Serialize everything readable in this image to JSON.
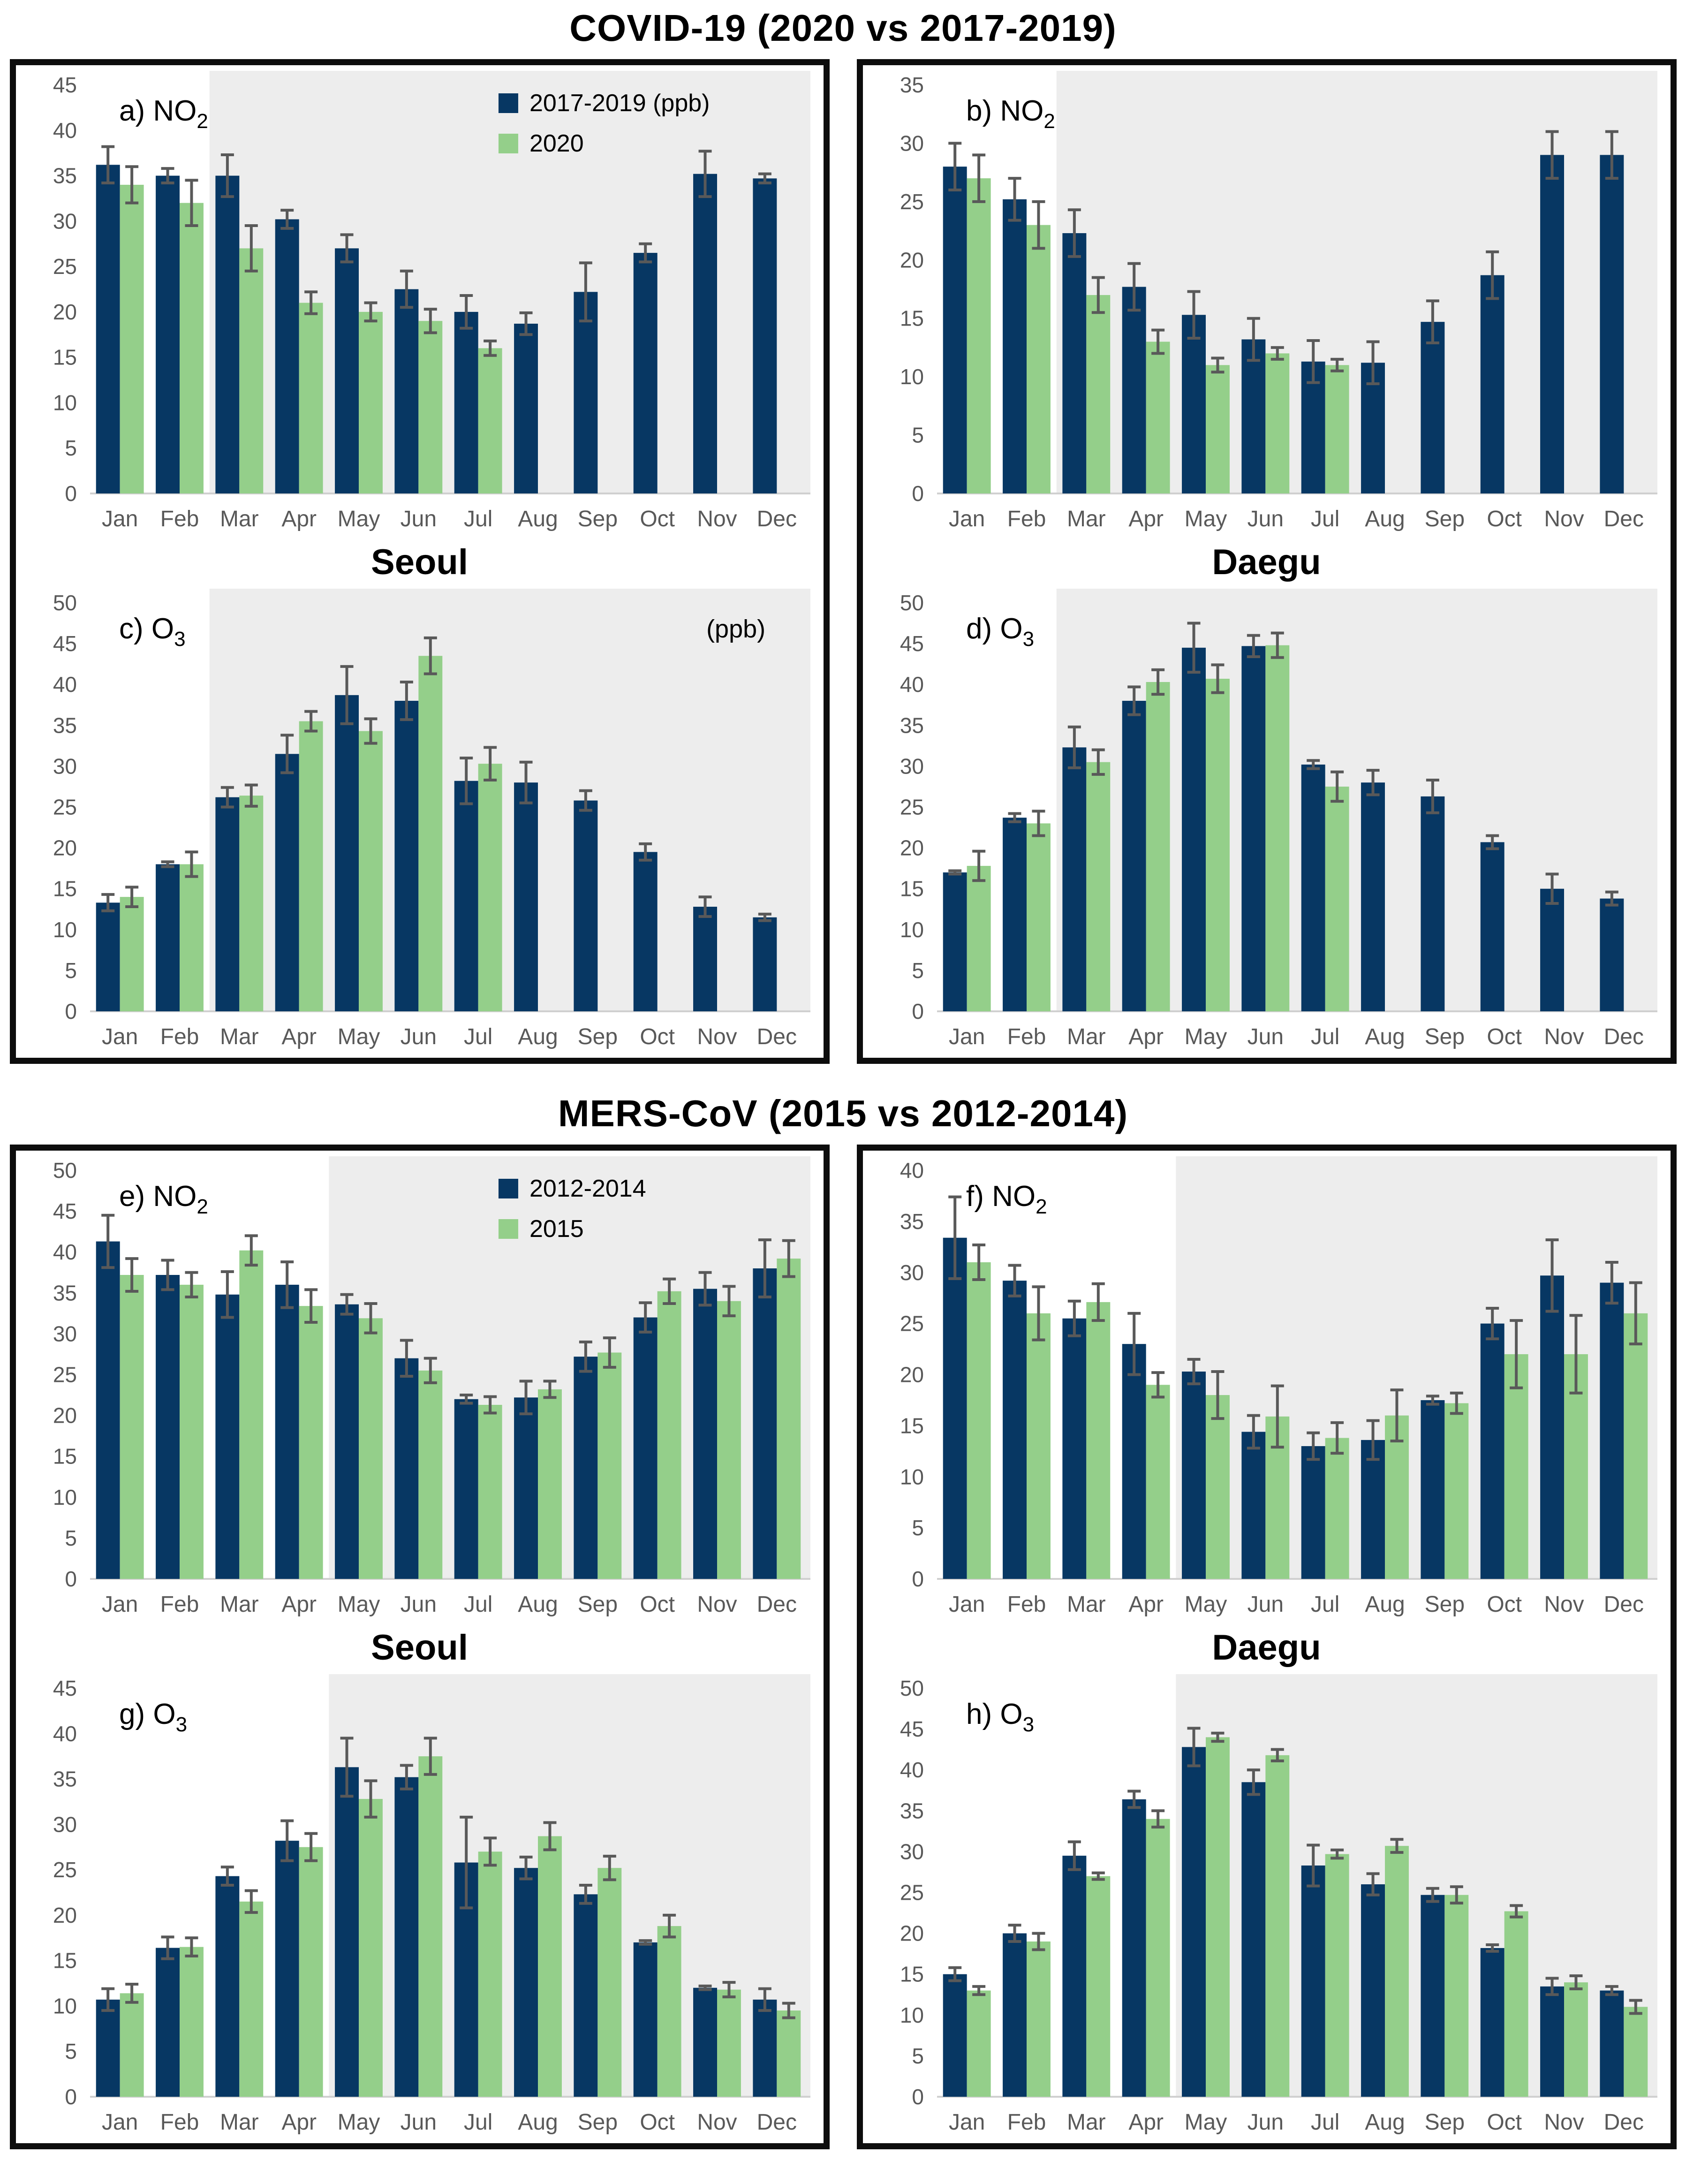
{
  "colors": {
    "baseline": "#073763",
    "pandemic": "#94cf8a",
    "error_bar": "#595959",
    "shade": "#ededed",
    "axis_text": "#595959",
    "axis_line": "#d0d0d0",
    "panel_border": "#0d0d0d"
  },
  "sections": [
    {
      "title": "COVID-19 (2020 vs 2017-2019)",
      "panels": [
        {
          "city": "Seoul",
          "charts": [
            "a",
            "c"
          ]
        },
        {
          "city": "Daegu",
          "charts": [
            "b",
            "d"
          ]
        }
      ]
    },
    {
      "title": "MERS-CoV (2015 vs 2012-2014)",
      "panels": [
        {
          "city": "Seoul",
          "charts": [
            "e",
            "g"
          ]
        },
        {
          "city": "Daegu",
          "charts": [
            "f",
            "h"
          ]
        }
      ]
    }
  ],
  "chart_data": [
    {
      "id": "a",
      "type": "bar",
      "label": "a)",
      "formula": "NO2",
      "city": "Seoul",
      "units": "ppb",
      "ylim": [
        0,
        45
      ],
      "ytick_step": 5,
      "shade_from": "Mar",
      "grid": false,
      "legend": {
        "items": [
          "2017-2019 (ppb)",
          "2020"
        ]
      },
      "annotation": null,
      "categories": [
        "Jan",
        "Feb",
        "Mar",
        "Apr",
        "May",
        "Jun",
        "Jul",
        "Aug",
        "Sep",
        "Oct",
        "Nov",
        "Dec"
      ],
      "series": [
        {
          "name": "2017-2019",
          "color": "baseline",
          "values": [
            36.2,
            35.0,
            35.0,
            30.2,
            27.0,
            22.5,
            20.0,
            18.7,
            22.2,
            26.5,
            35.2,
            34.7
          ],
          "errors": [
            2.0,
            0.8,
            2.3,
            1.0,
            1.5,
            2.0,
            1.8,
            1.2,
            3.2,
            1.0,
            2.5,
            0.5
          ]
        },
        {
          "name": "2020",
          "color": "pandemic",
          "values": [
            34.0,
            32.0,
            27.0,
            21.0,
            20.0,
            19.0,
            16.0,
            null,
            null,
            null,
            null,
            null
          ],
          "errors": [
            2.0,
            2.5,
            2.5,
            1.2,
            1.0,
            1.3,
            0.8,
            null,
            null,
            null,
            null,
            null
          ]
        }
      ]
    },
    {
      "id": "b",
      "type": "bar",
      "label": "b)",
      "formula": "NO2",
      "city": "Daegu",
      "units": "ppb",
      "ylim": [
        0,
        35
      ],
      "ytick_step": 5,
      "shade_from": "Mar",
      "grid": false,
      "legend": null,
      "annotation": null,
      "categories": [
        "Jan",
        "Feb",
        "Mar",
        "Apr",
        "May",
        "Jun",
        "Jul",
        "Aug",
        "Sep",
        "Oct",
        "Nov",
        "Dec"
      ],
      "series": [
        {
          "name": "2017-2019",
          "color": "baseline",
          "values": [
            28.0,
            25.2,
            22.3,
            17.7,
            15.3,
            13.2,
            11.3,
            11.2,
            14.7,
            18.7,
            29.0,
            29.0
          ],
          "errors": [
            2.0,
            1.8,
            2.0,
            2.0,
            2.0,
            1.8,
            1.8,
            1.8,
            1.8,
            2.0,
            2.0,
            2.0
          ]
        },
        {
          "name": "2020",
          "color": "pandemic",
          "values": [
            27.0,
            23.0,
            17.0,
            13.0,
            11.0,
            12.0,
            11.0,
            null,
            null,
            null,
            null,
            null
          ],
          "errors": [
            2.0,
            2.0,
            1.5,
            1.0,
            0.6,
            0.5,
            0.5,
            null,
            null,
            null,
            null,
            null
          ]
        }
      ]
    },
    {
      "id": "c",
      "type": "bar",
      "label": "c)",
      "formula": "O3",
      "city": "Seoul",
      "units": "ppb",
      "ylim": [
        0,
        50
      ],
      "ytick_step": 5,
      "shade_from": "Mar",
      "grid": false,
      "legend": null,
      "annotation": "(ppb)",
      "categories": [
        "Jan",
        "Feb",
        "Mar",
        "Apr",
        "May",
        "Jun",
        "Jul",
        "Aug",
        "Sep",
        "Oct",
        "Nov",
        "Dec"
      ],
      "series": [
        {
          "name": "2017-2019",
          "color": "baseline",
          "values": [
            13.3,
            18.0,
            26.2,
            31.5,
            38.7,
            38.0,
            28.2,
            28.0,
            25.8,
            19.5,
            12.8,
            11.5
          ],
          "errors": [
            1.0,
            0.3,
            1.2,
            2.3,
            3.5,
            2.3,
            2.8,
            2.5,
            1.2,
            1.0,
            1.2,
            0.4
          ]
        },
        {
          "name": "2020",
          "color": "pandemic",
          "values": [
            14.0,
            18.0,
            26.4,
            35.5,
            34.3,
            43.5,
            30.3,
            null,
            null,
            null,
            null,
            null
          ],
          "errors": [
            1.2,
            1.5,
            1.3,
            1.2,
            1.5,
            2.2,
            2.0,
            null,
            null,
            null,
            null,
            null
          ]
        }
      ]
    },
    {
      "id": "d",
      "type": "bar",
      "label": "d)",
      "formula": "O3",
      "city": "Daegu",
      "units": "ppb",
      "ylim": [
        0,
        50
      ],
      "ytick_step": 5,
      "shade_from": "Mar",
      "grid": false,
      "legend": null,
      "annotation": null,
      "categories": [
        "Jan",
        "Feb",
        "Mar",
        "Apr",
        "May",
        "Jun",
        "Jul",
        "Aug",
        "Sep",
        "Oct",
        "Nov",
        "Dec"
      ],
      "series": [
        {
          "name": "2017-2019",
          "color": "baseline",
          "values": [
            17.0,
            23.7,
            32.3,
            38.0,
            44.5,
            44.7,
            30.2,
            28.0,
            26.3,
            20.7,
            15.0,
            13.8
          ],
          "errors": [
            0.2,
            0.5,
            2.5,
            1.7,
            3.0,
            1.3,
            0.5,
            1.5,
            2.0,
            0.8,
            1.8,
            0.8
          ]
        },
        {
          "name": "2020",
          "color": "pandemic",
          "values": [
            17.8,
            23.0,
            30.5,
            40.3,
            40.7,
            44.8,
            27.5,
            null,
            null,
            null,
            null,
            null
          ],
          "errors": [
            1.8,
            1.5,
            1.5,
            1.5,
            1.7,
            1.5,
            1.8,
            null,
            null,
            null,
            null,
            null
          ]
        }
      ]
    },
    {
      "id": "e",
      "type": "bar",
      "label": "e)",
      "formula": "NO2",
      "city": "Seoul",
      "units": "ppb",
      "ylim": [
        0,
        50
      ],
      "ytick_step": 5,
      "shade_from": "May",
      "grid": false,
      "legend": {
        "items": [
          "2012-2014",
          "2015"
        ]
      },
      "annotation": null,
      "categories": [
        "Jan",
        "Feb",
        "Mar",
        "Apr",
        "May",
        "Jun",
        "Jul",
        "Aug",
        "Sep",
        "Oct",
        "Nov",
        "Dec"
      ],
      "series": [
        {
          "name": "2012-2014",
          "color": "baseline",
          "values": [
            41.3,
            37.2,
            34.8,
            36.0,
            33.6,
            27.0,
            22.0,
            22.2,
            27.2,
            32.0,
            35.5,
            38.0
          ],
          "errors": [
            3.2,
            1.8,
            2.8,
            2.8,
            1.2,
            2.2,
            0.5,
            2.0,
            1.8,
            1.8,
            2.0,
            3.5
          ]
        },
        {
          "name": "2015",
          "color": "pandemic",
          "values": [
            37.2,
            36.0,
            40.2,
            33.4,
            31.9,
            25.5,
            21.3,
            23.2,
            27.7,
            35.2,
            34.0,
            39.2
          ],
          "errors": [
            2.0,
            1.5,
            1.8,
            2.0,
            1.8,
            1.5,
            1.0,
            1.0,
            1.8,
            1.5,
            1.8,
            2.2
          ]
        }
      ]
    },
    {
      "id": "f",
      "type": "bar",
      "label": "f)",
      "formula": "NO2",
      "city": "Daegu",
      "units": "ppb",
      "ylim": [
        0,
        40
      ],
      "ytick_step": 5,
      "shade_from": "May",
      "grid": false,
      "legend": null,
      "annotation": null,
      "categories": [
        "Jan",
        "Feb",
        "Mar",
        "Apr",
        "May",
        "Jun",
        "Jul",
        "Aug",
        "Sep",
        "Oct",
        "Nov",
        "Dec"
      ],
      "series": [
        {
          "name": "2012-2014",
          "color": "baseline",
          "values": [
            33.4,
            29.2,
            25.5,
            23.0,
            20.3,
            14.4,
            13.0,
            13.6,
            17.5,
            25.0,
            29.7,
            29.0
          ],
          "errors": [
            4.0,
            1.5,
            1.7,
            3.0,
            1.2,
            1.6,
            1.3,
            1.9,
            0.4,
            1.5,
            3.5,
            2.0
          ]
        },
        {
          "name": "2015",
          "color": "pandemic",
          "values": [
            31.0,
            26.0,
            27.1,
            19.0,
            18.0,
            15.9,
            13.8,
            16.0,
            17.2,
            22.0,
            22.0,
            26.0
          ],
          "errors": [
            1.7,
            2.6,
            1.8,
            1.2,
            2.3,
            3.0,
            1.5,
            2.5,
            1.0,
            3.3,
            3.8,
            3.0
          ]
        }
      ]
    },
    {
      "id": "g",
      "type": "bar",
      "label": "g)",
      "formula": "O3",
      "city": "Seoul",
      "units": "ppb",
      "ylim": [
        0,
        45
      ],
      "ytick_step": 5,
      "shade_from": "May",
      "grid": false,
      "legend": null,
      "annotation": null,
      "categories": [
        "Jan",
        "Feb",
        "Mar",
        "Apr",
        "May",
        "Jun",
        "Jul",
        "Aug",
        "Sep",
        "Oct",
        "Nov",
        "Dec"
      ],
      "series": [
        {
          "name": "2012-2014",
          "color": "baseline",
          "values": [
            10.7,
            16.4,
            24.3,
            28.2,
            36.3,
            35.2,
            25.8,
            25.2,
            22.3,
            17.0,
            12.0,
            10.7
          ],
          "errors": [
            1.2,
            1.2,
            1.0,
            2.2,
            3.2,
            1.3,
            5.0,
            1.2,
            1.0,
            0.2,
            0.2,
            1.2
          ]
        },
        {
          "name": "2015",
          "color": "pandemic",
          "values": [
            11.4,
            16.5,
            21.5,
            27.5,
            32.8,
            37.5,
            27.0,
            28.7,
            25.2,
            18.8,
            11.8,
            9.5
          ],
          "errors": [
            1.0,
            1.0,
            1.2,
            1.5,
            2.0,
            2.0,
            1.5,
            1.5,
            1.3,
            1.2,
            0.8,
            0.8
          ]
        }
      ]
    },
    {
      "id": "h",
      "type": "bar",
      "label": "h)",
      "formula": "O3",
      "city": "Daegu",
      "units": "ppb",
      "ylim": [
        0,
        50
      ],
      "ytick_step": 5,
      "shade_from": "May",
      "grid": false,
      "legend": null,
      "annotation": null,
      "categories": [
        "Jan",
        "Feb",
        "Mar",
        "Apr",
        "May",
        "Jun",
        "Jul",
        "Aug",
        "Sep",
        "Oct",
        "Nov",
        "Dec"
      ],
      "series": [
        {
          "name": "2012-2014",
          "color": "baseline",
          "values": [
            15.0,
            20.0,
            29.5,
            36.4,
            42.8,
            38.5,
            28.3,
            26.0,
            24.7,
            18.2,
            13.5,
            13.0
          ],
          "errors": [
            0.8,
            1.0,
            1.7,
            1.0,
            2.3,
            1.5,
            2.5,
            1.3,
            0.8,
            0.4,
            1.0,
            0.5
          ]
        },
        {
          "name": "2015",
          "color": "pandemic",
          "values": [
            13.0,
            19.0,
            27.0,
            34.0,
            44.0,
            41.8,
            29.7,
            30.7,
            24.7,
            22.7,
            14.0,
            11.0
          ],
          "errors": [
            0.5,
            1.0,
            0.4,
            1.0,
            0.5,
            0.7,
            0.5,
            0.8,
            1.0,
            0.7,
            0.8,
            0.8
          ]
        }
      ]
    }
  ]
}
